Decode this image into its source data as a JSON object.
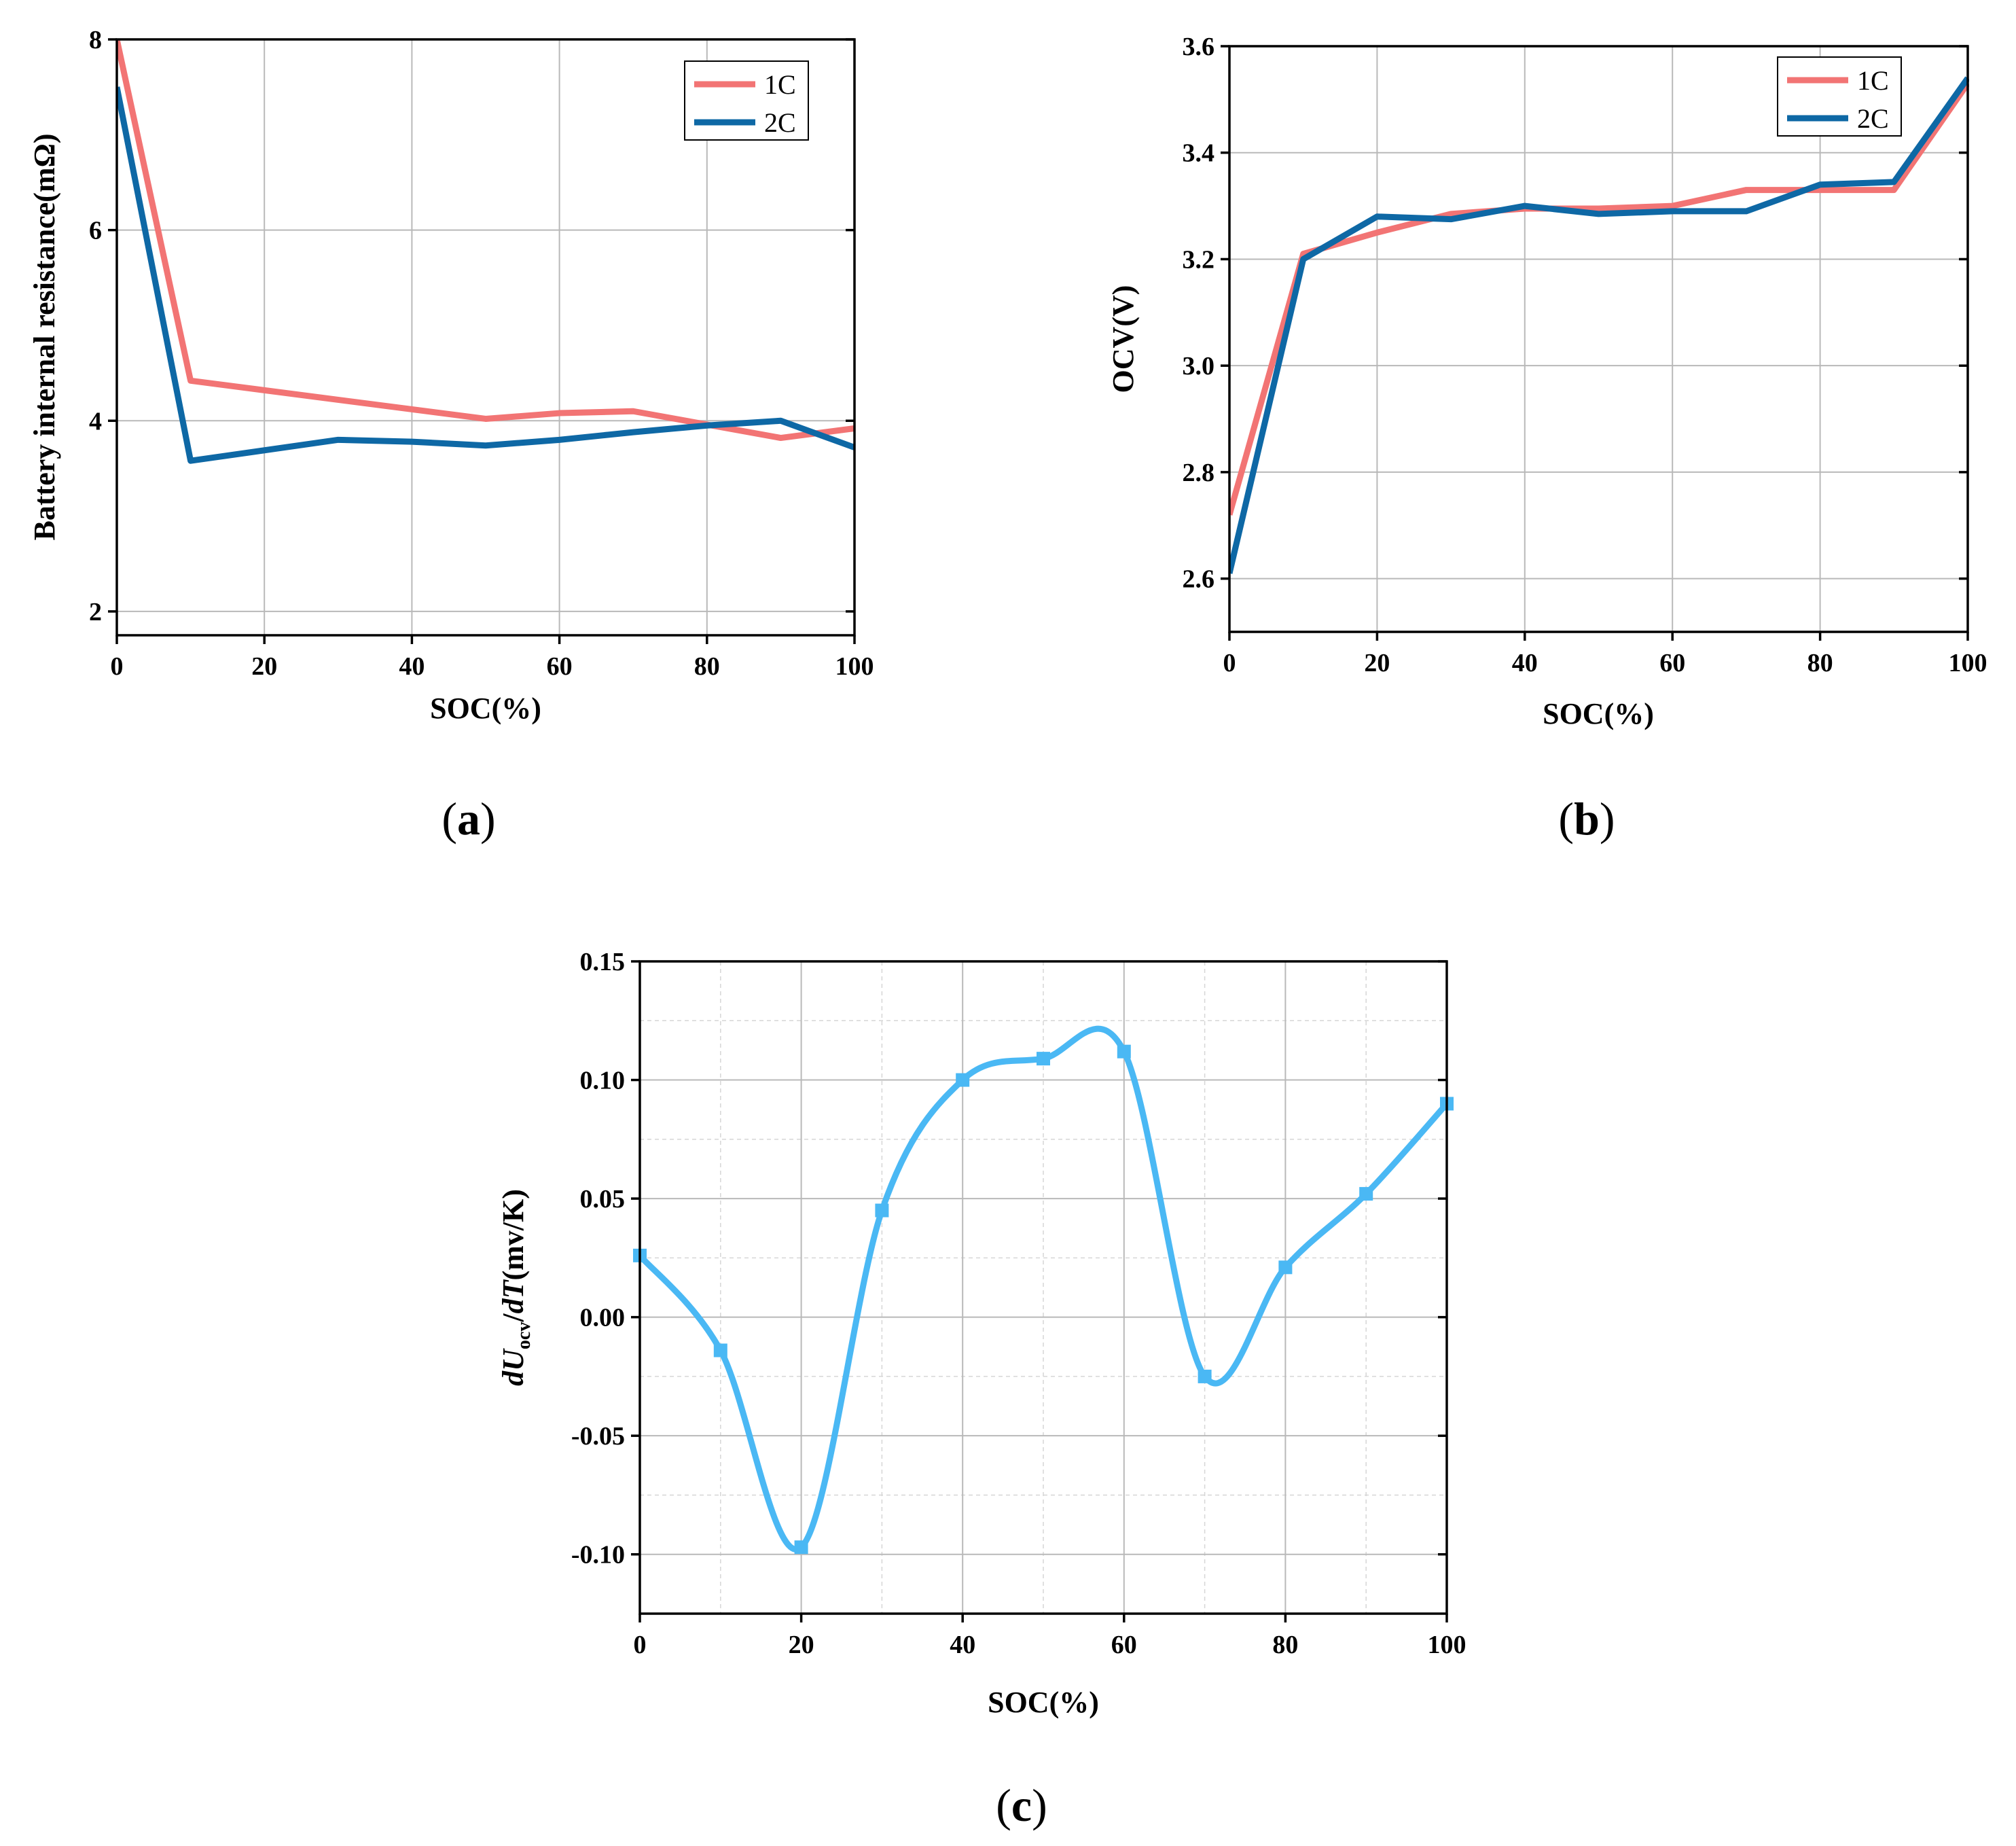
{
  "colors": {
    "c1": "#f27474",
    "c2": "#0e68a5",
    "c3": "#4ab8f4",
    "grid": "#b9b9b9"
  },
  "chart_data": [
    {
      "id": "a",
      "type": "line",
      "caption_letter": "a",
      "xlabel": "SOC(%)",
      "ylabel": "Battery internal resistance(mΩ)",
      "xlim": [
        0,
        100
      ],
      "ylim": [
        1.75,
        8
      ],
      "xticks": [
        0,
        20,
        40,
        60,
        80,
        100
      ],
      "xtick_labels": [
        "0",
        "20",
        "40",
        "60",
        "80",
        "100"
      ],
      "yticks": [
        2,
        4,
        6,
        8
      ],
      "ytick_labels": [
        "2",
        "4",
        "6",
        "8"
      ],
      "grid": true,
      "legend_position": "top-right",
      "series": [
        {
          "name": "1C",
          "color": "#f27474",
          "x": [
            0,
            10,
            30,
            50,
            60,
            70,
            90,
            100
          ],
          "y": [
            8.0,
            4.42,
            4.22,
            4.02,
            4.08,
            4.1,
            3.82,
            3.92
          ]
        },
        {
          "name": "2C",
          "color": "#0e68a5",
          "x": [
            0,
            10,
            30,
            40,
            50,
            60,
            70,
            80,
            90,
            100
          ],
          "y": [
            7.5,
            3.58,
            3.8,
            3.78,
            3.74,
            3.8,
            3.88,
            3.95,
            4.0,
            3.72
          ]
        }
      ]
    },
    {
      "id": "b",
      "type": "line",
      "caption_letter": "b",
      "xlabel": "SOC(%)",
      "ylabel": "OCV(V)",
      "xlim": [
        0,
        100
      ],
      "ylim": [
        2.5,
        3.6
      ],
      "xticks": [
        0,
        20,
        40,
        60,
        80,
        100
      ],
      "xtick_labels": [
        "0",
        "20",
        "40",
        "60",
        "80",
        "100"
      ],
      "yticks": [
        2.6,
        2.8,
        3.0,
        3.2,
        3.4,
        3.6
      ],
      "ytick_labels": [
        "2.6",
        "2.8",
        "3.0",
        "3.2",
        "3.4",
        "3.6"
      ],
      "grid": true,
      "legend_position": "top-right",
      "series": [
        {
          "name": "1C",
          "color": "#f27474",
          "x": [
            0,
            10,
            20,
            30,
            40,
            50,
            60,
            70,
            80,
            90,
            100
          ],
          "y": [
            2.72,
            3.21,
            3.25,
            3.285,
            3.295,
            3.295,
            3.3,
            3.33,
            3.33,
            3.33,
            3.53
          ]
        },
        {
          "name": "2C",
          "color": "#0e68a5",
          "x": [
            0,
            10,
            20,
            30,
            40,
            50,
            60,
            70,
            80,
            90,
            100
          ],
          "y": [
            2.61,
            3.2,
            3.28,
            3.275,
            3.3,
            3.285,
            3.29,
            3.29,
            3.34,
            3.345,
            3.54
          ]
        }
      ]
    },
    {
      "id": "c",
      "type": "line",
      "caption_letter": "c",
      "xlabel": "SOC(%)",
      "ylabel_parts": [
        "d",
        "U",
        "ocv",
        "/",
        "d",
        "T",
        "(mv/K)"
      ],
      "xlim": [
        0,
        100
      ],
      "ylim": [
        -0.125,
        0.15
      ],
      "xticks": [
        0,
        20,
        40,
        60,
        80,
        100
      ],
      "xtick_labels": [
        "0",
        "20",
        "40",
        "60",
        "80",
        "100"
      ],
      "yticks": [
        -0.1,
        -0.05,
        0.0,
        0.05,
        0.1,
        0.15
      ],
      "ytick_labels": [
        "-0.10",
        "-0.05",
        "0.00",
        "0.05",
        "0.10",
        "0.15"
      ],
      "grid": true,
      "minor_grid": true,
      "smooth": true,
      "markers": "square",
      "series": [
        {
          "name": "dUocv/dT",
          "color": "#4ab8f4",
          "x": [
            0,
            10,
            20,
            30,
            40,
            50,
            60,
            70,
            80,
            90,
            100
          ],
          "y": [
            0.026,
            -0.014,
            -0.097,
            0.045,
            0.1,
            0.109,
            0.112,
            -0.025,
            0.021,
            0.052,
            0.09
          ]
        }
      ]
    }
  ]
}
